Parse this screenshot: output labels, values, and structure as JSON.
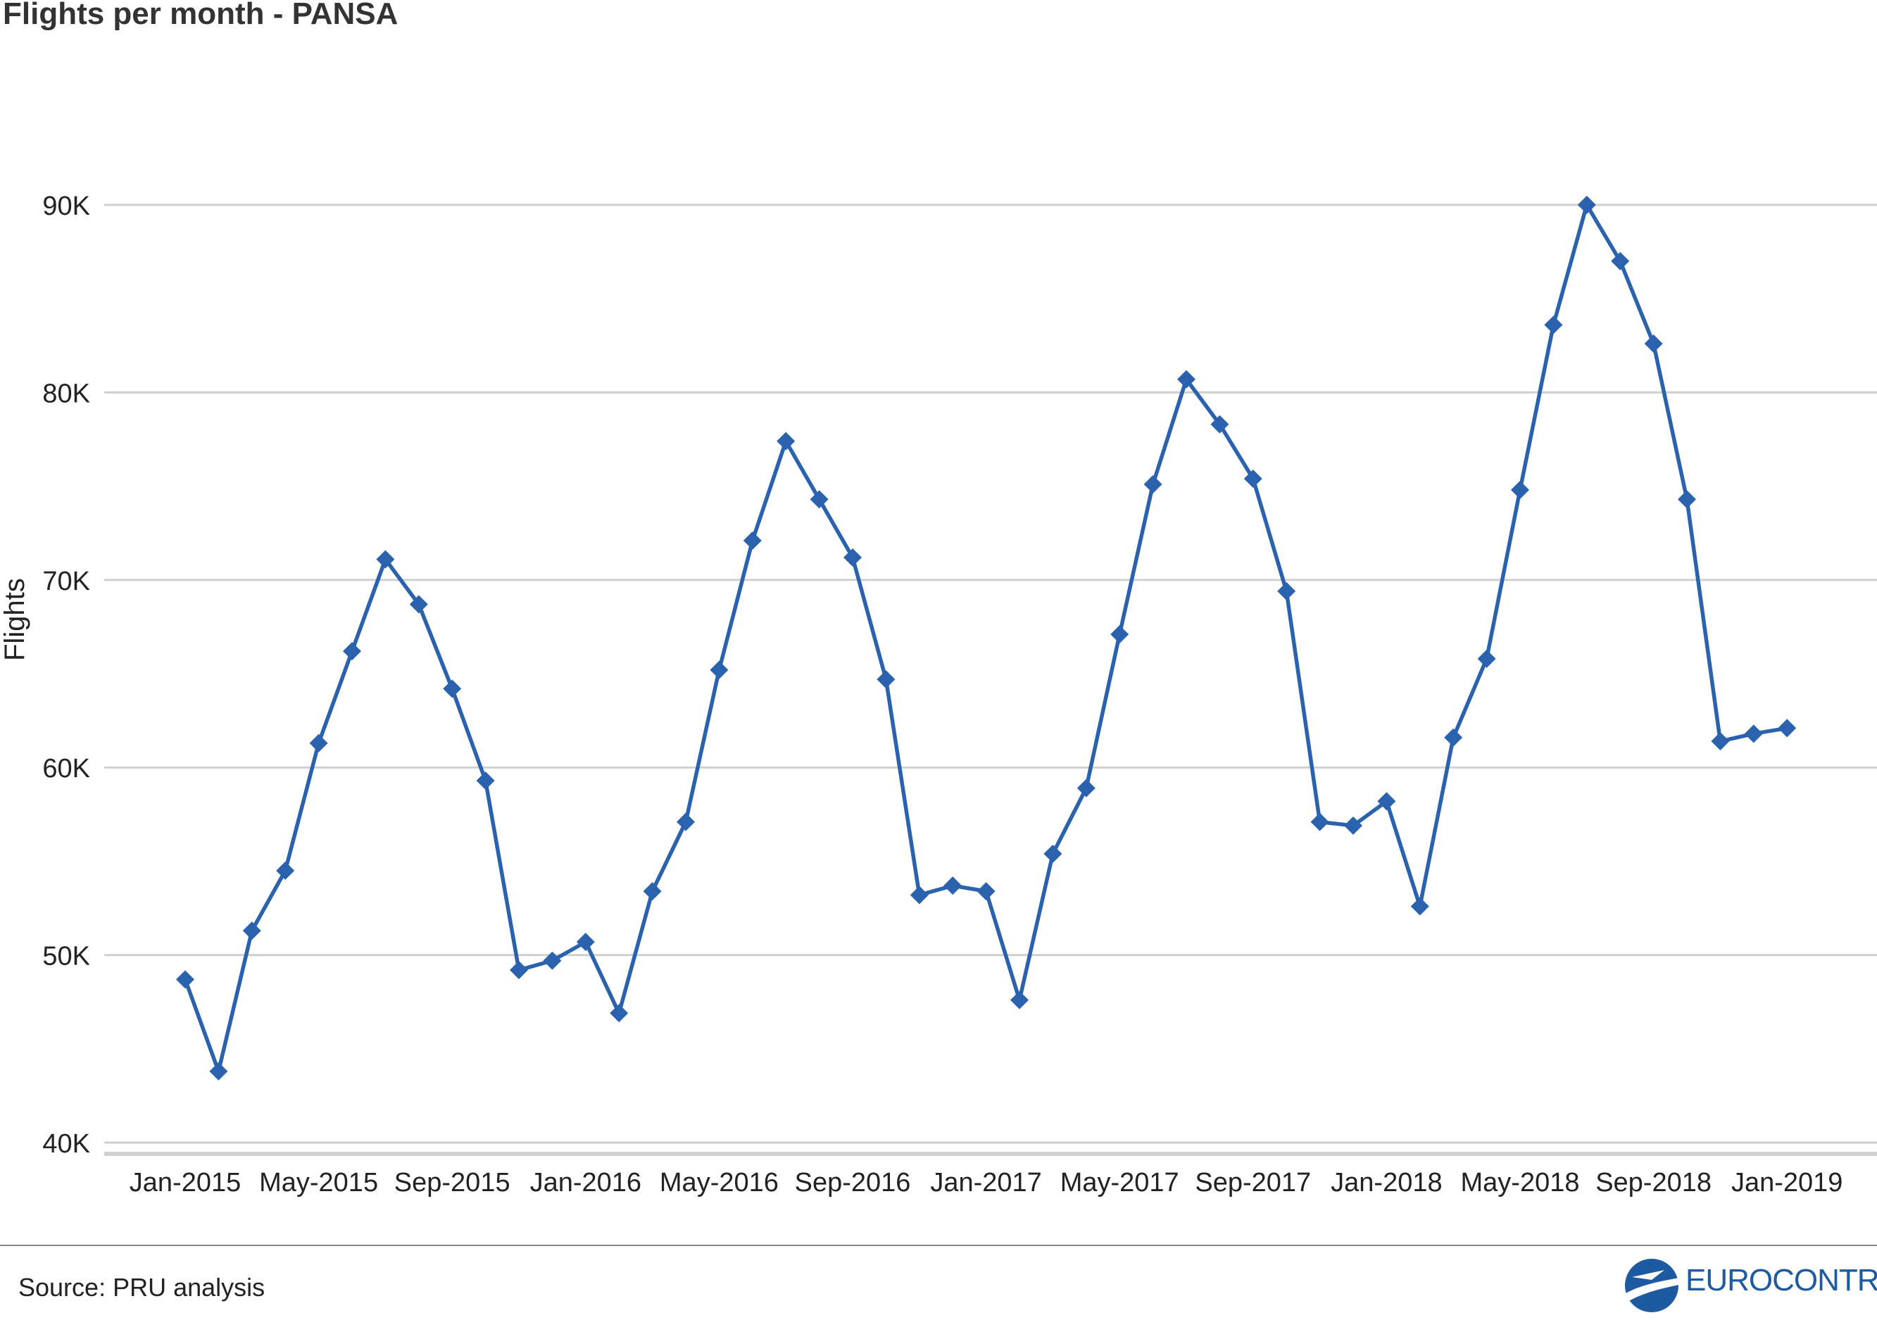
{
  "header": {
    "title": "Flights per month - PANSA"
  },
  "footer": {
    "source": "Source: PRU analysis",
    "logo_text": "EUROCONTROL"
  },
  "colors": {
    "series": "#2b62ae",
    "grid": "#d0d0d0",
    "axis_text": "#222222",
    "logo": "#1e5aa0"
  },
  "chart_data": {
    "type": "line",
    "title": "Flights per month - PANSA",
    "xlabel": "",
    "ylabel": "Flights",
    "ylim": [
      40000,
      90000
    ],
    "yticks": [
      40000,
      50000,
      60000,
      70000,
      80000,
      90000
    ],
    "ytick_labels": [
      "40K",
      "50K",
      "60K",
      "70K",
      "80K",
      "90K"
    ],
    "xtick_labels": [
      "Jan-2015",
      "May-2015",
      "Sep-2015",
      "Jan-2016",
      "May-2016",
      "Sep-2016",
      "Jan-2017",
      "May-2017",
      "Sep-2017",
      "Jan-2018",
      "May-2018",
      "Sep-2018",
      "Jan-2019"
    ],
    "grid": true,
    "marker": "diamond",
    "x": [
      "Jan-2015",
      "Feb-2015",
      "Mar-2015",
      "Apr-2015",
      "May-2015",
      "Jun-2015",
      "Jul-2015",
      "Aug-2015",
      "Sep-2015",
      "Oct-2015",
      "Nov-2015",
      "Dec-2015",
      "Jan-2016",
      "Feb-2016",
      "Mar-2016",
      "Apr-2016",
      "May-2016",
      "Jun-2016",
      "Jul-2016",
      "Aug-2016",
      "Sep-2016",
      "Oct-2016",
      "Nov-2016",
      "Dec-2016",
      "Jan-2017",
      "Feb-2017",
      "Mar-2017",
      "Apr-2017",
      "May-2017",
      "Jun-2017",
      "Jul-2017",
      "Aug-2017",
      "Sep-2017",
      "Oct-2017",
      "Nov-2017",
      "Dec-2017",
      "Jan-2018",
      "Feb-2018",
      "Mar-2018",
      "Apr-2018",
      "May-2018",
      "Jun-2018",
      "Jul-2018",
      "Aug-2018",
      "Sep-2018",
      "Oct-2018",
      "Nov-2018",
      "Dec-2018",
      "Jan-2019"
    ],
    "series": [
      {
        "values": [
          48700,
          43800,
          51300,
          54500,
          61300,
          66200,
          71100,
          68700,
          64200,
          59300,
          49200,
          49700,
          50700,
          46900,
          53400,
          57100,
          65200,
          72100,
          77400,
          74300,
          71200,
          64700,
          53200,
          53700,
          53400,
          47600,
          55400,
          58900,
          67100,
          75100,
          80700,
          78300,
          75400,
          69400,
          57100,
          56900,
          58200,
          52600,
          61600,
          65800,
          74800,
          83600,
          90000,
          87000,
          82600,
          74300,
          61400,
          61800,
          62100
        ]
      }
    ]
  }
}
